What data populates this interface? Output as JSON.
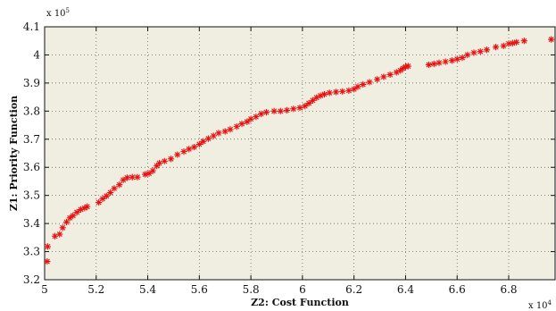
{
  "chart_data": {
    "type": "scatter",
    "title": "",
    "xlabel": "Z2: Cost Function",
    "ylabel": "Z1: Priority Function",
    "x_multiplier": {
      "base": "x 10",
      "exponent": "4"
    },
    "y_multiplier": {
      "base": "x 10",
      "exponent": "5"
    },
    "xlim": [
      5.0,
      6.98
    ],
    "ylim": [
      3.2,
      4.1
    ],
    "x_ticks": [
      "5",
      "5.2",
      "5.4",
      "5.6",
      "5.8",
      "6",
      "6.2",
      "6.4",
      "6.6",
      "6.8"
    ],
    "y_ticks": [
      "3.2",
      "3.3",
      "3.4",
      "3.5",
      "3.6",
      "3.7",
      "3.8",
      "3.9",
      "4",
      "4.1"
    ],
    "grid": true,
    "marker": "*",
    "series_color": "#e81010",
    "plot_background": "#f0eee1",
    "points": [
      [
        5.01,
        3.265
      ],
      [
        5.012,
        3.318
      ],
      [
        5.04,
        3.355
      ],
      [
        5.058,
        3.362
      ],
      [
        5.07,
        3.385
      ],
      [
        5.085,
        3.405
      ],
      [
        5.098,
        3.42
      ],
      [
        5.11,
        3.428
      ],
      [
        5.125,
        3.44
      ],
      [
        5.14,
        3.45
      ],
      [
        5.155,
        3.455
      ],
      [
        5.165,
        3.46
      ],
      [
        5.21,
        3.475
      ],
      [
        5.225,
        3.488
      ],
      [
        5.24,
        3.498
      ],
      [
        5.255,
        3.51
      ],
      [
        5.27,
        3.525
      ],
      [
        5.29,
        3.538
      ],
      [
        5.305,
        3.555
      ],
      [
        5.32,
        3.563
      ],
      [
        5.34,
        3.565
      ],
      [
        5.36,
        3.565
      ],
      [
        5.39,
        3.575
      ],
      [
        5.405,
        3.578
      ],
      [
        5.42,
        3.588
      ],
      [
        5.435,
        3.605
      ],
      [
        5.445,
        3.615
      ],
      [
        5.465,
        3.622
      ],
      [
        5.49,
        3.63
      ],
      [
        5.515,
        3.645
      ],
      [
        5.54,
        3.656
      ],
      [
        5.56,
        3.665
      ],
      [
        5.58,
        3.672
      ],
      [
        5.6,
        3.682
      ],
      [
        5.615,
        3.692
      ],
      [
        5.635,
        3.702
      ],
      [
        5.655,
        3.712
      ],
      [
        5.675,
        3.722
      ],
      [
        5.7,
        3.728
      ],
      [
        5.72,
        3.735
      ],
      [
        5.745,
        3.745
      ],
      [
        5.765,
        3.755
      ],
      [
        5.785,
        3.762
      ],
      [
        5.8,
        3.772
      ],
      [
        5.82,
        3.78
      ],
      [
        5.84,
        3.79
      ],
      [
        5.86,
        3.796
      ],
      [
        5.89,
        3.8
      ],
      [
        5.915,
        3.8
      ],
      [
        5.94,
        3.803
      ],
      [
        5.965,
        3.808
      ],
      [
        5.99,
        3.812
      ],
      [
        6.01,
        3.818
      ],
      [
        6.025,
        3.828
      ],
      [
        6.04,
        3.838
      ],
      [
        6.055,
        3.848
      ],
      [
        6.07,
        3.855
      ],
      [
        6.085,
        3.86
      ],
      [
        6.105,
        3.865
      ],
      [
        6.13,
        3.868
      ],
      [
        6.155,
        3.87
      ],
      [
        6.18,
        3.873
      ],
      [
        6.2,
        3.878
      ],
      [
        6.215,
        3.887
      ],
      [
        6.235,
        3.895
      ],
      [
        6.26,
        3.903
      ],
      [
        6.29,
        3.913
      ],
      [
        6.315,
        3.922
      ],
      [
        6.34,
        3.93
      ],
      [
        6.365,
        3.938
      ],
      [
        6.38,
        3.945
      ],
      [
        6.39,
        3.952
      ],
      [
        6.4,
        3.958
      ],
      [
        6.41,
        3.96
      ],
      [
        6.49,
        3.965
      ],
      [
        6.51,
        3.968
      ],
      [
        6.53,
        3.972
      ],
      [
        6.555,
        3.976
      ],
      [
        6.58,
        3.98
      ],
      [
        6.6,
        3.985
      ],
      [
        6.62,
        3.99
      ],
      [
        6.64,
        4.0
      ],
      [
        6.665,
        4.008
      ],
      [
        6.69,
        4.012
      ],
      [
        6.715,
        4.018
      ],
      [
        6.75,
        4.028
      ],
      [
        6.78,
        4.032
      ],
      [
        6.8,
        4.04
      ],
      [
        6.815,
        4.042
      ],
      [
        6.83,
        4.045
      ],
      [
        6.86,
        4.05
      ],
      [
        6.965,
        4.055
      ]
    ]
  }
}
